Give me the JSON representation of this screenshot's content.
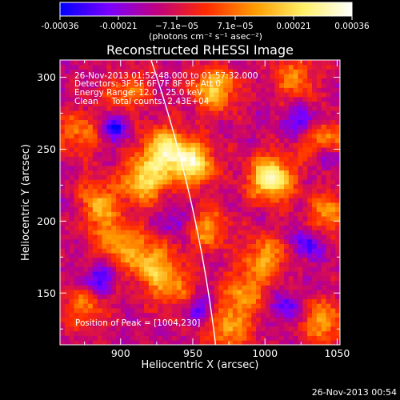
{
  "colorbar": {
    "ticks": [
      "-0.00036",
      "-0.00021",
      "−7.1e−05",
      "7.1e−05",
      "0.00021",
      "0.00036"
    ],
    "unit_label": "(photons cm⁻² s⁻¹ asec⁻²)"
  },
  "chart_data": {
    "type": "heatmap",
    "title": "Reconstructed RHESSI Image",
    "xlabel": "Heliocentric X (arcsec)",
    "ylabel": "Heliocentric Y (arcsec)",
    "xlim": [
      858,
      1052
    ],
    "ylim": [
      114,
      312
    ],
    "x_ticks": [
      900,
      950,
      1000,
      1050
    ],
    "y_ticks": [
      150,
      200,
      250,
      300
    ],
    "zlim": [
      -0.00036,
      0.00036
    ],
    "colormap": [
      "#0000ff",
      "#7a00ff",
      "#c0007f",
      "#ff2a00",
      "#ff9b00",
      "#fff067",
      "#ffffff"
    ],
    "info_lines": [
      "26-Nov-2013 01:52:48.000 to 01:57:32.000",
      "Detectors: 3F 5F 6F 7F 8F 9F, Att 0",
      "Energy Range: 12.0 - 25.0 keV",
      "Clean     Total counts: 2.43E+04"
    ],
    "peak_label": "Position of Peak = [1004,230]",
    "peak": [
      1004,
      230
    ],
    "limb_color": "#ffffff",
    "bright_regions": [
      {
        "x": 950,
        "y": 240,
        "level": 0.9
      },
      {
        "x": 1004,
        "y": 230,
        "level": 1.0
      },
      {
        "x": 916,
        "y": 228,
        "level": 0.8
      },
      {
        "x": 930,
        "y": 250,
        "level": 0.85
      },
      {
        "x": 903,
        "y": 294,
        "level": 0.7
      },
      {
        "x": 965,
        "y": 292,
        "level": 0.75
      },
      {
        "x": 882,
        "y": 212,
        "level": 0.7
      },
      {
        "x": 898,
        "y": 186,
        "level": 0.6
      },
      {
        "x": 920,
        "y": 172,
        "level": 0.65
      },
      {
        "x": 935,
        "y": 155,
        "level": 0.55
      },
      {
        "x": 960,
        "y": 195,
        "level": 0.55
      },
      {
        "x": 1000,
        "y": 175,
        "level": 0.6
      },
      {
        "x": 985,
        "y": 150,
        "level": 0.55
      },
      {
        "x": 975,
        "y": 125,
        "level": 0.6
      },
      {
        "x": 1040,
        "y": 130,
        "level": 0.6
      },
      {
        "x": 1045,
        "y": 205,
        "level": 0.55
      },
      {
        "x": 1042,
        "y": 255,
        "level": 0.6
      },
      {
        "x": 1020,
        "y": 300,
        "level": 0.5
      },
      {
        "x": 875,
        "y": 140,
        "level": 0.45
      },
      {
        "x": 872,
        "y": 262,
        "level": 0.5
      }
    ],
    "dark_regions": [
      {
        "x": 885,
        "y": 160,
        "level": 1.0
      },
      {
        "x": 895,
        "y": 265,
        "level": 1.0
      },
      {
        "x": 900,
        "y": 300,
        "level": 0.9
      },
      {
        "x": 940,
        "y": 200,
        "level": 0.7
      },
      {
        "x": 1030,
        "y": 185,
        "level": 0.9
      },
      {
        "x": 1025,
        "y": 270,
        "level": 0.9
      },
      {
        "x": 1045,
        "y": 245,
        "level": 1.0
      },
      {
        "x": 1015,
        "y": 140,
        "level": 0.8
      },
      {
        "x": 955,
        "y": 140,
        "level": 0.7
      },
      {
        "x": 870,
        "y": 210,
        "level": 0.6
      }
    ]
  },
  "footer": {
    "timestamp": "26-Nov-2013 00:54"
  }
}
